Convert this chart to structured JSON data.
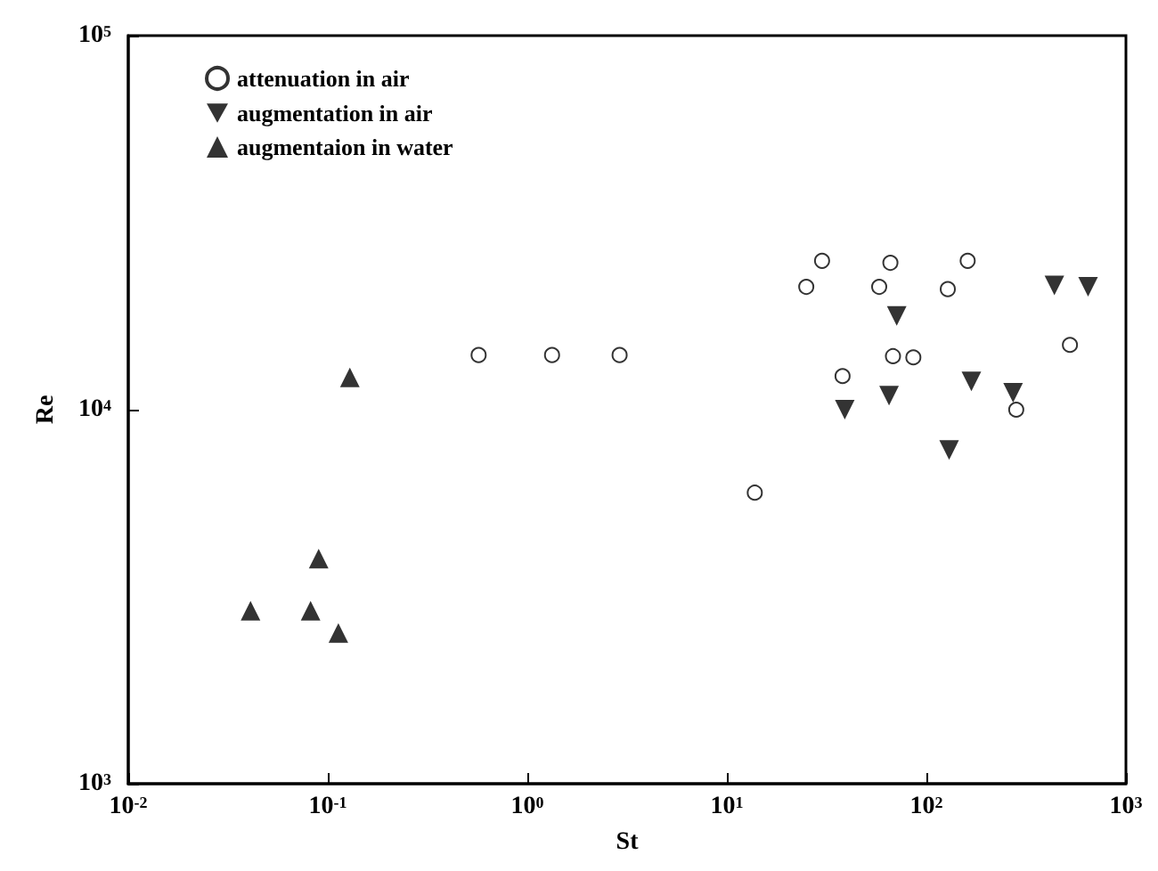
{
  "chart_data": {
    "type": "scatter",
    "xlabel": "St",
    "ylabel": "Re",
    "log": "xy",
    "grid": false,
    "legend": "top left",
    "xlim": [
      0.01,
      1000
    ],
    "ylim": [
      1000,
      100000
    ],
    "xticks": [
      {
        "value": 0.01,
        "label": "10$^{-2}$"
      },
      {
        "value": 0.1,
        "label": "10$^{-1}$"
      },
      {
        "value": 1,
        "label": "10$^{0}$"
      },
      {
        "value": 10,
        "label": "10$^{1}$"
      },
      {
        "value": 100,
        "label": "10$^{2}$"
      },
      {
        "value": 1000,
        "label": "10$^{3}$"
      }
    ],
    "yticks": [
      {
        "value": 1000,
        "label": "10$^{3}$"
      },
      {
        "value": 10000,
        "label": "10$^{4}$"
      },
      {
        "value": 100000,
        "label": "10$^{5}$"
      }
    ],
    "series": [
      {
        "name": "attenuation in air",
        "color": "#000000",
        "marker": "circle",
        "x": [
          0.57,
          1.33,
          2.9,
          13.8,
          25,
          30,
          38,
          58,
          66,
          68,
          86,
          128,
          161,
          282,
          524
        ],
        "values": [
          14000,
          14000,
          14000,
          6000,
          21300,
          25000,
          12300,
          21300,
          24700,
          13900,
          13800,
          21000,
          25000,
          10000,
          14900
        ]
      },
      {
        "name": "augmentation in air",
        "color": "#000000",
        "marker": "triangle-down",
        "x": [
          39,
          65,
          71,
          130,
          168,
          272,
          438,
          646
        ],
        "values": [
          10000,
          10900,
          17800,
          7800,
          11900,
          11100,
          21500,
          21300
        ]
      },
      {
        "name": "augmentaion in water",
        "color": "#000000",
        "marker": "triangle",
        "x": [
          0.041,
          0.082,
          0.09,
          0.113,
          0.129
        ],
        "values": [
          2900,
          2900,
          4000,
          2530,
          12200
        ]
      }
    ]
  }
}
